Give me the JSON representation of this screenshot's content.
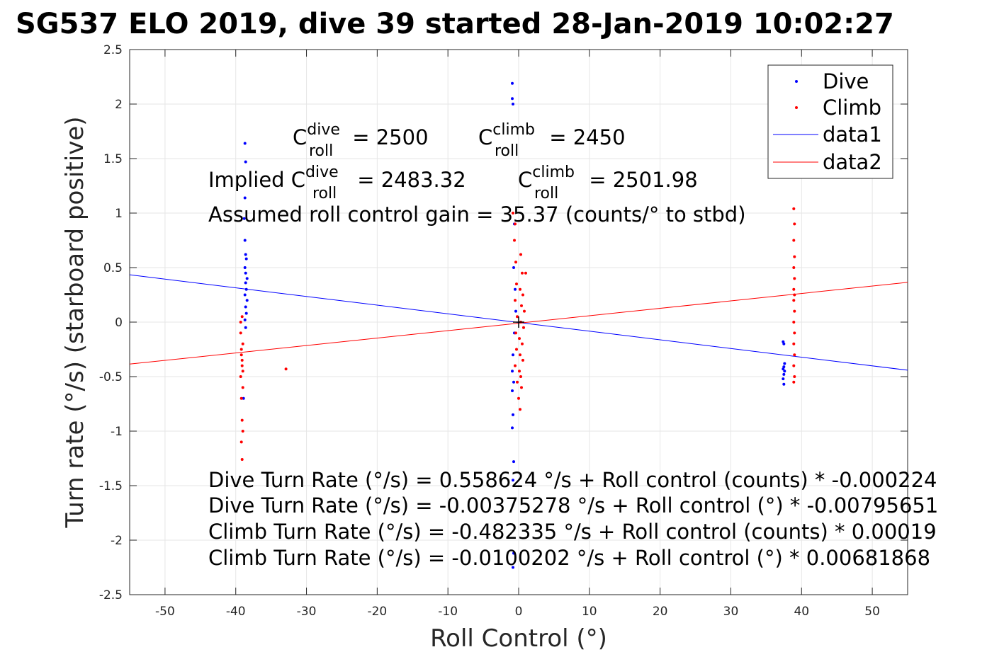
{
  "chart_data": {
    "type": "scatter",
    "title": "SG537 ELO 2019, dive 39 started 28-Jan-2019 10:02:27",
    "xlabel": "Roll Control (°)",
    "ylabel": "Turn rate (°/s) (starboard positive)",
    "xlim": [
      -55,
      55
    ],
    "ylim": [
      -2.5,
      2.5
    ],
    "xticks": [
      -50,
      -40,
      -30,
      -20,
      -10,
      0,
      10,
      20,
      30,
      40,
      50
    ],
    "yticks": [
      2.5,
      2,
      1.5,
      1,
      0.5,
      0,
      -0.5,
      -1,
      -1.5,
      -2,
      -2.5
    ],
    "xtick_labels": [
      "-50",
      "-40",
      "-30",
      "-20",
      "-10",
      "0",
      "10",
      "20",
      "30",
      "40",
      "50"
    ],
    "ytick_labels": [
      "2.5",
      "2",
      "1.5",
      "1",
      "0.5",
      "0",
      "-0.5",
      "-1",
      "-1.5",
      "-2",
      "-2.5"
    ],
    "grid": true,
    "legend_position": "top-right",
    "legend": [
      "Dive",
      "Climb",
      "data1",
      "data2"
    ],
    "colors": {
      "dive": "#0000ff",
      "climb": "#ff0000",
      "axis": "#262626",
      "grid": "#e6e6e6"
    },
    "series": [
      {
        "name": "Dive",
        "kind": "points",
        "color": "#0000ff",
        "points": [
          [
            -38.7,
            1.64
          ],
          [
            -38.6,
            1.47
          ],
          [
            -38.7,
            1.14
          ],
          [
            -38.8,
            0.95
          ],
          [
            -38.7,
            0.75
          ],
          [
            -38.6,
            0.62
          ],
          [
            -38.5,
            0.58
          ],
          [
            -38.7,
            0.5
          ],
          [
            -38.6,
            0.45
          ],
          [
            -38.4,
            0.4
          ],
          [
            -38.6,
            0.36
          ],
          [
            -38.5,
            0.3
          ],
          [
            -38.7,
            0.25
          ],
          [
            -38.4,
            0.2
          ],
          [
            -38.6,
            0.14
          ],
          [
            -38.5,
            0.08
          ],
          [
            -38.7,
            0.02
          ],
          [
            -38.6,
            -0.05
          ],
          [
            -38.9,
            -0.7
          ],
          [
            -0.9,
            2.19
          ],
          [
            -0.9,
            2.05
          ],
          [
            -0.8,
            2.0
          ],
          [
            -0.6,
            0.9
          ],
          [
            -0.7,
            0.5
          ],
          [
            -0.5,
            0.3
          ],
          [
            -0.4,
            0.1
          ],
          [
            -0.6,
            -0.1
          ],
          [
            -0.8,
            -0.3
          ],
          [
            -0.9,
            -0.45
          ],
          [
            -0.7,
            -0.55
          ],
          [
            -0.9,
            -0.63
          ],
          [
            -0.8,
            -0.85
          ],
          [
            -0.9,
            -0.97
          ],
          [
            -0.7,
            -1.28
          ],
          [
            -0.8,
            -1.45
          ],
          [
            -0.7,
            -2.12
          ],
          [
            -0.8,
            -2.25
          ],
          [
            37.4,
            -0.18
          ],
          [
            37.5,
            -0.2
          ],
          [
            37.6,
            -0.38
          ],
          [
            37.5,
            -0.41
          ],
          [
            37.4,
            -0.43
          ],
          [
            37.6,
            -0.45
          ],
          [
            37.5,
            -0.48
          ],
          [
            37.4,
            -0.52
          ],
          [
            37.5,
            -0.57
          ]
        ]
      },
      {
        "name": "Climb",
        "kind": "points",
        "color": "#ff0000",
        "points": [
          [
            -39.1,
            0.05
          ],
          [
            -39.3,
            -0.1
          ],
          [
            -39.0,
            -0.2
          ],
          [
            -39.2,
            -0.3
          ],
          [
            -39.1,
            -0.4
          ],
          [
            -39.3,
            -0.5
          ],
          [
            -39.0,
            -0.6
          ],
          [
            -39.2,
            -0.7
          ],
          [
            -39.1,
            -0.9
          ],
          [
            -39.0,
            -1.0
          ],
          [
            -39.2,
            -1.1
          ],
          [
            -39.1,
            -1.26
          ],
          [
            -39.3,
            0.0
          ],
          [
            -39.2,
            -0.25
          ],
          [
            -39.1,
            -0.35
          ],
          [
            -39.0,
            -0.45
          ],
          [
            -32.9,
            -0.43
          ],
          [
            -0.8,
            1.0
          ],
          [
            -0.5,
            0.9
          ],
          [
            -0.6,
            0.75
          ],
          [
            0.3,
            0.62
          ],
          [
            -0.4,
            0.55
          ],
          [
            0.5,
            0.45
          ],
          [
            1.0,
            0.45
          ],
          [
            -0.3,
            0.35
          ],
          [
            0.2,
            0.3
          ],
          [
            0.6,
            0.25
          ],
          [
            -0.5,
            0.2
          ],
          [
            0.4,
            0.15
          ],
          [
            0.8,
            0.1
          ],
          [
            -0.2,
            0.05
          ],
          [
            0.3,
            0.0
          ],
          [
            0.7,
            -0.05
          ],
          [
            -0.4,
            -0.1
          ],
          [
            0.1,
            -0.15
          ],
          [
            0.5,
            -0.2
          ],
          [
            -0.3,
            -0.25
          ],
          [
            0.2,
            -0.3
          ],
          [
            0.6,
            -0.35
          ],
          [
            -0.5,
            -0.4
          ],
          [
            0.1,
            -0.45
          ],
          [
            0.3,
            -0.5
          ],
          [
            -0.2,
            -0.55
          ],
          [
            0.4,
            -0.6
          ],
          [
            0.0,
            -0.7
          ],
          [
            0.2,
            -0.8
          ],
          [
            38.9,
            1.04
          ],
          [
            39.0,
            0.9
          ],
          [
            38.9,
            0.75
          ],
          [
            39.0,
            0.6
          ],
          [
            38.9,
            0.5
          ],
          [
            39.0,
            0.4
          ],
          [
            38.9,
            0.3
          ],
          [
            39.0,
            0.25
          ],
          [
            38.9,
            0.2
          ],
          [
            39.0,
            0.1
          ],
          [
            38.9,
            0.0
          ],
          [
            39.0,
            -0.1
          ],
          [
            38.9,
            -0.2
          ],
          [
            39.0,
            -0.3
          ],
          [
            38.9,
            -0.4
          ],
          [
            39.0,
            -0.5
          ],
          [
            38.9,
            -0.55
          ]
        ]
      },
      {
        "name": "data1",
        "kind": "line",
        "color": "#0000ff",
        "x": [
          -55,
          55
        ],
        "y": [
          0.434,
          -0.441
        ]
      },
      {
        "name": "data2",
        "kind": "line",
        "color": "#ff0000",
        "x": [
          -55,
          55
        ],
        "y": [
          -0.385,
          0.365
        ]
      }
    ],
    "crosshair": [
      0,
      0
    ],
    "annotations": {
      "c_roll_dive": {
        "prefix": "C",
        "sup": "dive",
        "sub": "roll",
        "suffix": " = 2500"
      },
      "c_roll_climb": {
        "prefix": "C",
        "sup": "climb",
        "sub": "roll",
        "suffix": " = 2450"
      },
      "implied_dive": {
        "prefix": "Implied C",
        "sup": "dive",
        "sub": "roll",
        "suffix": " = 2483.32"
      },
      "implied_climb": {
        "prefix": "C",
        "sup": "climb",
        "sub": "roll",
        "suffix": " = 2501.98"
      },
      "gain": "Assumed roll control gain = 35.37 (counts/° to stbd)",
      "eq1": "Dive Turn Rate (°/s) = 0.558624 °/s + Roll control (counts) * -0.000224",
      "eq2": "Dive Turn Rate (°/s) = -0.00375278 °/s + Roll control (°) * -0.00795651",
      "eq3": "Climb Turn Rate (°/s) = -0.482335 °/s + Roll control (counts) * 0.00019",
      "eq4": "Climb Turn Rate (°/s) = -0.0100202 °/s + Roll control (°) * 0.00681868"
    }
  }
}
